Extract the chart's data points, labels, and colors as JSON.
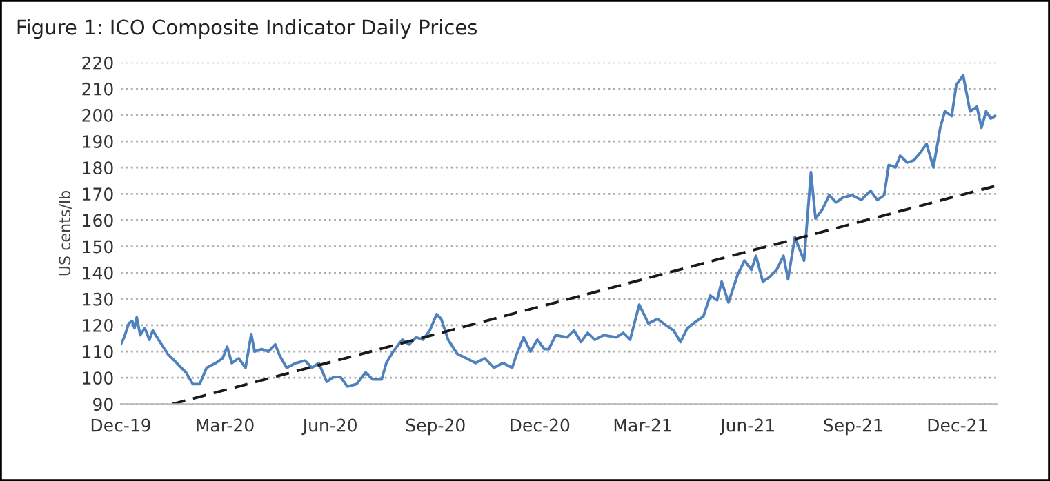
{
  "chart_data": {
    "type": "line",
    "title": "Figure 1: ICO Composite Indicator Daily Prices",
    "ylabel": "US cents/lb",
    "xlim": [
      "2019-12-01",
      "2022-01-05"
    ],
    "ylim": [
      90,
      220
    ],
    "xticks": [
      {
        "value": "2019-12-01",
        "label": "Dec-19"
      },
      {
        "value": "2020-03-01",
        "label": "Mar-20"
      },
      {
        "value": "2020-06-01",
        "label": "Jun-20"
      },
      {
        "value": "2020-09-01",
        "label": "Sep-20"
      },
      {
        "value": "2020-12-01",
        "label": "Dec-20"
      },
      {
        "value": "2021-03-01",
        "label": "Mar-21"
      },
      {
        "value": "2021-06-01",
        "label": "Jun-21"
      },
      {
        "value": "2021-09-01",
        "label": "Sep-21"
      },
      {
        "value": "2021-12-01",
        "label": "Dec-21"
      }
    ],
    "yticks": [
      90,
      100,
      110,
      120,
      130,
      140,
      150,
      160,
      170,
      180,
      190,
      200,
      210,
      220
    ],
    "grid": "y",
    "legend": false,
    "series": [
      {
        "color": "#4f81bd",
        "line_style": "solid",
        "x": [
          "2019-12-01",
          "2019-12-04",
          "2019-12-08",
          "2019-12-11",
          "2019-12-13",
          "2019-12-15",
          "2019-12-18",
          "2019-12-22",
          "2019-12-26",
          "2019-12-29",
          "2020-01-03",
          "2020-01-11",
          "2020-01-19",
          "2020-01-27",
          "2020-02-02",
          "2020-02-08",
          "2020-02-14",
          "2020-02-22",
          "2020-02-28",
          "2020-03-03",
          "2020-03-07",
          "2020-03-13",
          "2020-03-19",
          "2020-03-24",
          "2020-03-27",
          "2020-04-02",
          "2020-04-08",
          "2020-04-14",
          "2020-04-18",
          "2020-04-24",
          "2020-05-02",
          "2020-05-10",
          "2020-05-16",
          "2020-05-22",
          "2020-05-29",
          "2020-06-04",
          "2020-06-10",
          "2020-06-16",
          "2020-06-24",
          "2020-07-02",
          "2020-07-08",
          "2020-07-16",
          "2020-07-20",
          "2020-07-26",
          "2020-08-03",
          "2020-08-09",
          "2020-08-15",
          "2020-08-21",
          "2020-08-27",
          "2020-09-02",
          "2020-09-06",
          "2020-09-12",
          "2020-09-20",
          "2020-09-28",
          "2020-10-06",
          "2020-10-14",
          "2020-10-22",
          "2020-10-30",
          "2020-11-07",
          "2020-11-11",
          "2020-11-17",
          "2020-11-23",
          "2020-11-29",
          "2020-12-05",
          "2020-12-09",
          "2020-12-15",
          "2020-12-25",
          "2020-12-31",
          "2021-01-06",
          "2021-01-12",
          "2021-01-18",
          "2021-01-26",
          "2021-02-06",
          "2021-02-12",
          "2021-02-18",
          "2021-02-26",
          "2021-03-06",
          "2021-03-14",
          "2021-03-22",
          "2021-03-28",
          "2021-04-03",
          "2021-04-09",
          "2021-04-17",
          "2021-04-23",
          "2021-04-29",
          "2021-05-05",
          "2021-05-09",
          "2021-05-15",
          "2021-05-23",
          "2021-05-29",
          "2021-06-04",
          "2021-06-08",
          "2021-06-14",
          "2021-06-20",
          "2021-06-26",
          "2021-07-02",
          "2021-07-06",
          "2021-07-12",
          "2021-07-20",
          "2021-07-26",
          "2021-07-30",
          "2021-08-05",
          "2021-08-11",
          "2021-08-17",
          "2021-08-23",
          "2021-08-31",
          "2021-09-08",
          "2021-09-16",
          "2021-09-22",
          "2021-09-28",
          "2021-10-02",
          "2021-10-08",
          "2021-10-12",
          "2021-10-18",
          "2021-10-24",
          "2021-10-29",
          "2021-11-04",
          "2021-11-10",
          "2021-11-16",
          "2021-11-20",
          "2021-11-26",
          "2021-11-30",
          "2021-12-06",
          "2021-12-12",
          "2021-12-18",
          "2021-12-22",
          "2021-12-26",
          "2021-12-30",
          "2022-01-03"
        ],
        "values": [
          112.7,
          115.4,
          120.7,
          121.6,
          118.9,
          123.0,
          116.2,
          118.9,
          114.5,
          118.0,
          114.5,
          109.1,
          105.6,
          102.0,
          97.6,
          97.6,
          103.8,
          105.6,
          107.4,
          111.8,
          105.6,
          107.4,
          103.8,
          116.6,
          110.0,
          110.9,
          110.0,
          112.7,
          108.3,
          103.8,
          105.6,
          106.5,
          103.8,
          105.6,
          98.5,
          100.3,
          100.3,
          96.7,
          97.6,
          102.0,
          99.4,
          99.4,
          105.6,
          110.0,
          114.5,
          112.7,
          115.4,
          114.5,
          118.0,
          124.2,
          122.4,
          114.5,
          109.1,
          107.4,
          105.6,
          107.4,
          103.8,
          105.6,
          103.8,
          109.1,
          115.4,
          110.0,
          114.5,
          110.9,
          110.9,
          116.2,
          115.4,
          118.0,
          113.6,
          117.1,
          114.5,
          116.2,
          115.4,
          117.1,
          114.5,
          127.8,
          120.7,
          122.4,
          119.8,
          118.0,
          113.6,
          118.9,
          121.6,
          123.3,
          131.3,
          129.5,
          136.6,
          128.7,
          139.3,
          144.6,
          141.1,
          146.4,
          136.6,
          138.4,
          141.1,
          146.4,
          137.5,
          153.5,
          144.6,
          178.3,
          160.6,
          164.1,
          169.5,
          166.8,
          168.6,
          169.5,
          167.7,
          171.2,
          167.7,
          169.5,
          181.0,
          180.1,
          184.5,
          181.9,
          182.8,
          185.4,
          189.0,
          180.1,
          195.2,
          201.4,
          199.6,
          211.5,
          215.1,
          201.4,
          203.2,
          195.2,
          201.4,
          198.7,
          199.6
        ]
      },
      {
        "color": "#1a1a1a",
        "line_style": "dashed",
        "x": [
          "2020-01-15",
          "2022-01-03"
        ],
        "values": [
          90,
          173
        ]
      }
    ]
  }
}
